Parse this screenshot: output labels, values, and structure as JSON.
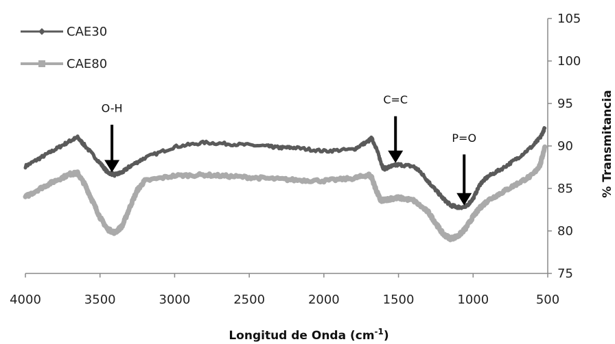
{
  "chart_data": {
    "type": "line",
    "title": "",
    "xlabel": "Longitud de Onda (cm",
    "xlabel_sup": "-1",
    "xlabel_close": ")",
    "ylabel": "% Transmitancia",
    "xlim": [
      4000,
      500
    ],
    "ylim": [
      75,
      105
    ],
    "x_ticks": [
      4000,
      3500,
      3000,
      2500,
      2000,
      1500,
      1000,
      500
    ],
    "y_ticks": [
      75,
      80,
      85,
      90,
      95,
      100,
      105
    ],
    "y_axis_side": "right",
    "grid": false,
    "legend_position": "top-left",
    "series": [
      {
        "name": "CAE30",
        "color": "#5a5a5a",
        "marker": "diamond",
        "x": [
          4000,
          3900,
          3800,
          3700,
          3650,
          3600,
          3500,
          3450,
          3400,
          3350,
          3300,
          3200,
          3000,
          2800,
          2600,
          2400,
          2300,
          2200,
          2000,
          1800,
          1700,
          1680,
          1650,
          1620,
          1600,
          1550,
          1500,
          1400,
          1350,
          1300,
          1250,
          1200,
          1150,
          1100,
          1050,
          1000,
          950,
          900,
          800,
          700,
          600,
          550,
          520
        ],
        "y": [
          87.6,
          88.6,
          89.6,
          90.6,
          91.0,
          90.0,
          88.0,
          86.9,
          86.6,
          86.9,
          87.6,
          88.6,
          89.9,
          90.4,
          90.2,
          90.0,
          89.8,
          89.8,
          89.4,
          89.6,
          90.6,
          90.9,
          89.8,
          88.2,
          87.3,
          87.6,
          87.8,
          87.6,
          86.9,
          85.8,
          84.8,
          83.8,
          83.0,
          82.8,
          82.8,
          83.8,
          85.6,
          86.4,
          87.4,
          88.6,
          90.0,
          91.0,
          92.1
        ]
      },
      {
        "name": "CAE80",
        "color": "#aaaaaa",
        "marker": "square",
        "x": [
          4000,
          3900,
          3800,
          3700,
          3650,
          3600,
          3550,
          3500,
          3450,
          3400,
          3350,
          3300,
          3250,
          3200,
          3000,
          2800,
          2600,
          2400,
          2200,
          2000,
          1800,
          1700,
          1680,
          1650,
          1620,
          1600,
          1550,
          1500,
          1400,
          1300,
          1250,
          1200,
          1150,
          1100,
          1050,
          1000,
          950,
          900,
          800,
          700,
          600,
          550,
          520
        ],
        "y": [
          84.0,
          85.0,
          85.9,
          86.7,
          86.8,
          85.4,
          83.5,
          81.6,
          80.2,
          79.8,
          80.6,
          82.8,
          84.8,
          85.9,
          86.5,
          86.6,
          86.4,
          86.2,
          86.0,
          85.9,
          86.2,
          86.6,
          86.3,
          84.8,
          83.6,
          83.6,
          83.8,
          83.9,
          83.6,
          82.2,
          80.9,
          79.6,
          79.1,
          79.4,
          80.3,
          81.7,
          82.8,
          83.6,
          84.6,
          85.6,
          86.6,
          87.8,
          89.9
        ]
      }
    ],
    "annotations": [
      {
        "label": "O-H",
        "x": 3420,
        "y_text": 94.0,
        "y_arrow_top": 92.5,
        "y_arrow_tip": 86.9
      },
      {
        "label": "C=C",
        "x": 1520,
        "y_text": 95.0,
        "y_arrow_top": 93.5,
        "y_arrow_tip": 88.0
      },
      {
        "label": "P=O",
        "x": 1060,
        "y_text": 90.5,
        "y_arrow_top": 89.0,
        "y_arrow_tip": 83.0
      }
    ]
  }
}
